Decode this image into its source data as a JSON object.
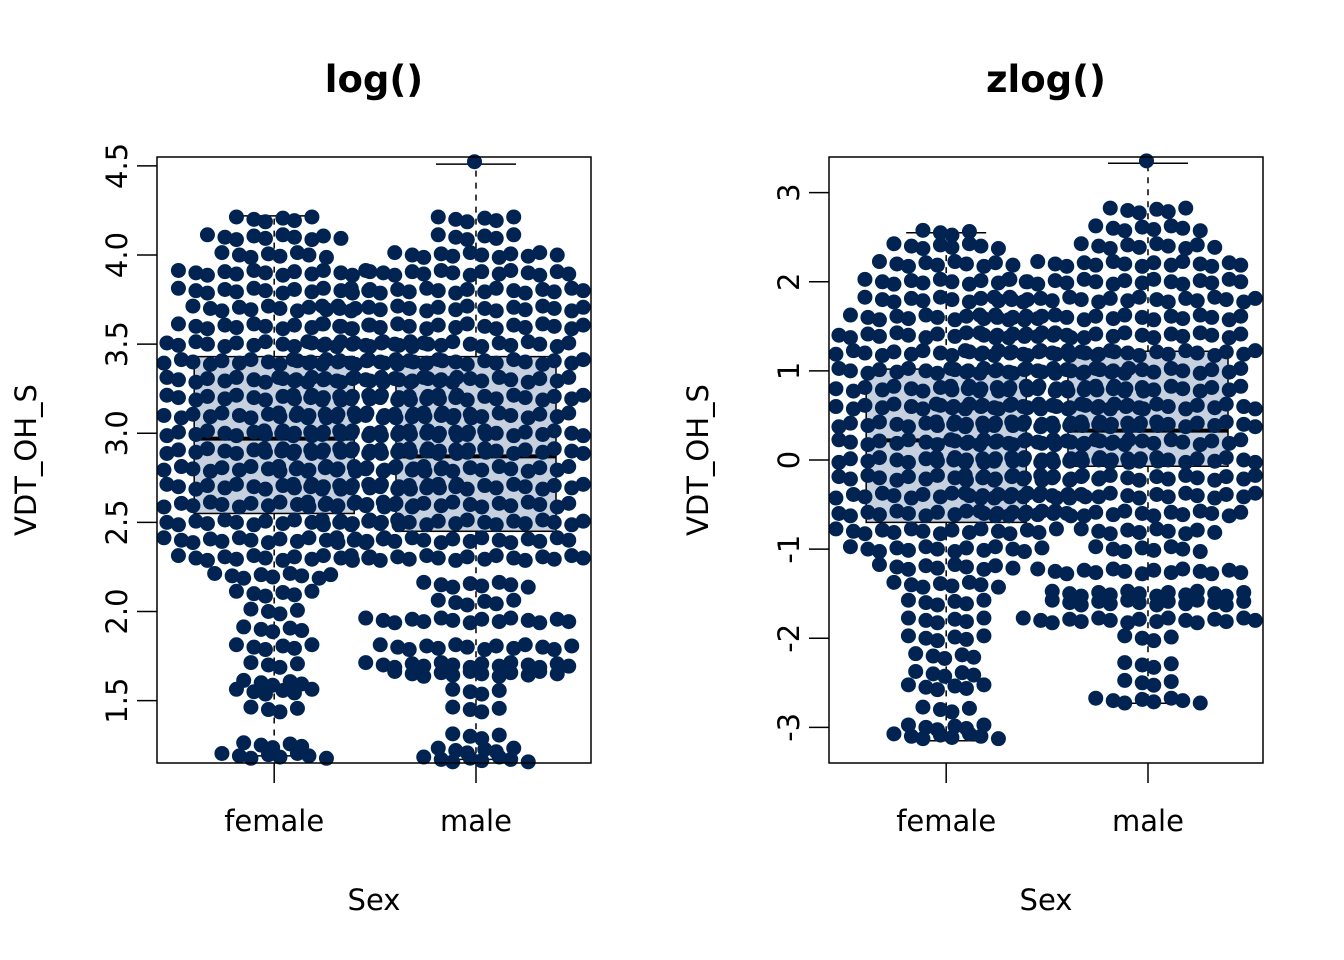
{
  "colors": {
    "points": "#002352",
    "box_fill": "#c7d0de",
    "axis": "#000000"
  },
  "chart_data": [
    {
      "type": "box-swarm",
      "title": "log()",
      "xlabel": "Sex",
      "ylabel": "VDT_OH_S",
      "categories": [
        "female",
        "male"
      ],
      "ylim": [
        1.15,
        4.55
      ],
      "yticks": [
        1.5,
        2.0,
        2.5,
        3.0,
        3.5,
        4.0,
        4.5
      ],
      "ytick_labels": [
        "1.5",
        "2.0",
        "2.5",
        "3.0",
        "3.5",
        "4.0",
        "4.5"
      ],
      "grid": false,
      "boxes": [
        {
          "category": "female",
          "whisker_low": 1.19,
          "q1": 2.55,
          "median": 2.97,
          "q3": 3.43,
          "whisker_high": 4.22
        },
        {
          "category": "male",
          "whisker_low": 1.17,
          "q1": 2.45,
          "median": 2.87,
          "q3": 3.43,
          "whisker_high": 4.51
        }
      ],
      "swarm_levels": [
        {
          "category": "female",
          "points": [
            [
              1.19,
              8
            ],
            [
              1.25,
              5
            ],
            [
              1.45,
              4
            ],
            [
              1.55,
              6
            ],
            [
              1.6,
              5
            ],
            [
              1.7,
              4
            ],
            [
              1.8,
              6
            ],
            [
              1.9,
              5
            ],
            [
              2.0,
              4
            ],
            [
              2.1,
              6
            ],
            [
              2.2,
              9
            ],
            [
              2.3,
              14
            ],
            [
              2.4,
              16
            ],
            [
              2.5,
              18
            ],
            [
              2.6,
              20
            ],
            [
              2.7,
              26
            ],
            [
              2.8,
              24
            ],
            [
              2.9,
              30
            ],
            [
              3.0,
              30
            ],
            [
              3.1,
              28
            ],
            [
              3.2,
              26
            ],
            [
              3.3,
              26
            ],
            [
              3.4,
              24
            ],
            [
              3.5,
              22
            ],
            [
              3.6,
              14
            ],
            [
              3.7,
              12
            ],
            [
              3.8,
              14
            ],
            [
              3.9,
              14
            ],
            [
              4.0,
              8
            ],
            [
              4.1,
              10
            ],
            [
              4.2,
              6
            ]
          ]
        },
        {
          "category": "male",
          "points": [
            [
              1.17,
              8
            ],
            [
              1.22,
              6
            ],
            [
              1.3,
              4
            ],
            [
              1.45,
              4
            ],
            [
              1.55,
              4
            ],
            [
              1.65,
              12
            ],
            [
              1.7,
              16
            ],
            [
              1.8,
              14
            ],
            [
              1.95,
              16
            ],
            [
              2.05,
              6
            ],
            [
              2.15,
              8
            ],
            [
              2.3,
              18
            ],
            [
              2.4,
              20
            ],
            [
              2.5,
              22
            ],
            [
              2.6,
              24
            ],
            [
              2.7,
              26
            ],
            [
              2.8,
              28
            ],
            [
              2.9,
              30
            ],
            [
              3.0,
              30
            ],
            [
              3.1,
              28
            ],
            [
              3.2,
              26
            ],
            [
              3.3,
              28
            ],
            [
              3.4,
              26
            ],
            [
              3.5,
              24
            ],
            [
              3.6,
              22
            ],
            [
              3.7,
              22
            ],
            [
              3.8,
              18
            ],
            [
              3.9,
              16
            ],
            [
              4.0,
              12
            ],
            [
              4.1,
              6
            ],
            [
              4.2,
              6
            ],
            [
              4.51,
              1
            ]
          ]
        }
      ]
    },
    {
      "type": "box-swarm",
      "title": "zlog()",
      "xlabel": "Sex",
      "ylabel": "VDT_OH_S",
      "categories": [
        "female",
        "male"
      ],
      "ylim": [
        -3.4,
        3.4
      ],
      "yticks": [
        -3,
        -2,
        -1,
        0,
        1,
        2,
        3
      ],
      "ytick_labels": [
        "-3",
        "-2",
        "-1",
        "0",
        "1",
        "2",
        "3"
      ],
      "grid": false,
      "boxes": [
        {
          "category": "female",
          "whisker_low": -3.15,
          "q1": -0.7,
          "median": 0.22,
          "q3": 1.02,
          "whisker_high": 2.55
        },
        {
          "category": "male",
          "whisker_low": -2.73,
          "q1": -0.07,
          "median": 0.33,
          "q3": 1.22,
          "whisker_high": 3.33
        }
      ],
      "swarm_levels": [
        {
          "category": "female",
          "points": [
            [
              -3.1,
              8
            ],
            [
              -3.0,
              6
            ],
            [
              -2.8,
              4
            ],
            [
              -2.55,
              6
            ],
            [
              -2.4,
              5
            ],
            [
              -2.2,
              5
            ],
            [
              -2.0,
              6
            ],
            [
              -1.8,
              6
            ],
            [
              -1.6,
              6
            ],
            [
              -1.4,
              8
            ],
            [
              -1.2,
              10
            ],
            [
              -1.0,
              14
            ],
            [
              -0.8,
              16
            ],
            [
              -0.6,
              18
            ],
            [
              -0.4,
              20
            ],
            [
              -0.2,
              22
            ],
            [
              0.0,
              30
            ],
            [
              0.2,
              26
            ],
            [
              0.4,
              30
            ],
            [
              0.6,
              28
            ],
            [
              0.8,
              28
            ],
            [
              1.0,
              26
            ],
            [
              1.2,
              24
            ],
            [
              1.4,
              18
            ],
            [
              1.6,
              14
            ],
            [
              1.8,
              12
            ],
            [
              2.0,
              12
            ],
            [
              2.2,
              10
            ],
            [
              2.4,
              8
            ],
            [
              2.55,
              4
            ]
          ]
        },
        {
          "category": "male",
          "points": [
            [
              -2.7,
              8
            ],
            [
              -2.5,
              4
            ],
            [
              -2.3,
              4
            ],
            [
              -2.0,
              4
            ],
            [
              -1.8,
              18
            ],
            [
              -1.6,
              14
            ],
            [
              -1.5,
              14
            ],
            [
              -1.25,
              16
            ],
            [
              -1.0,
              8
            ],
            [
              -0.8,
              10
            ],
            [
              -0.6,
              24
            ],
            [
              -0.4,
              26
            ],
            [
              -0.2,
              26
            ],
            [
              0.0,
              30
            ],
            [
              0.2,
              28
            ],
            [
              0.4,
              30
            ],
            [
              0.6,
              30
            ],
            [
              0.8,
              28
            ],
            [
              1.0,
              28
            ],
            [
              1.2,
              26
            ],
            [
              1.4,
              24
            ],
            [
              1.6,
              24
            ],
            [
              1.8,
              22
            ],
            [
              2.0,
              20
            ],
            [
              2.2,
              16
            ],
            [
              2.4,
              10
            ],
            [
              2.6,
              8
            ],
            [
              2.8,
              6
            ],
            [
              3.33,
              1
            ]
          ]
        }
      ]
    }
  ]
}
